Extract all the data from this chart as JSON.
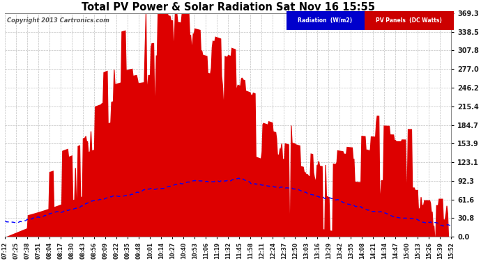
{
  "title": "Total PV Power & Solar Radiation Sat Nov 16 15:55",
  "copyright": "Copyright 2013 Cartronics.com",
  "yticks": [
    0.0,
    30.8,
    61.6,
    92.3,
    123.1,
    153.9,
    184.7,
    215.4,
    246.2,
    277.0,
    307.8,
    338.5,
    369.3
  ],
  "ymax": 369.3,
  "ymin": 0.0,
  "background_color": "#ffffff",
  "grid_color": "#c0c0c0",
  "pv_color": "#dd0000",
  "radiation_color": "#0000ff",
  "legend_radiation_bg": "#0000cc",
  "legend_pv_bg": "#cc0000",
  "n_points": 520
}
